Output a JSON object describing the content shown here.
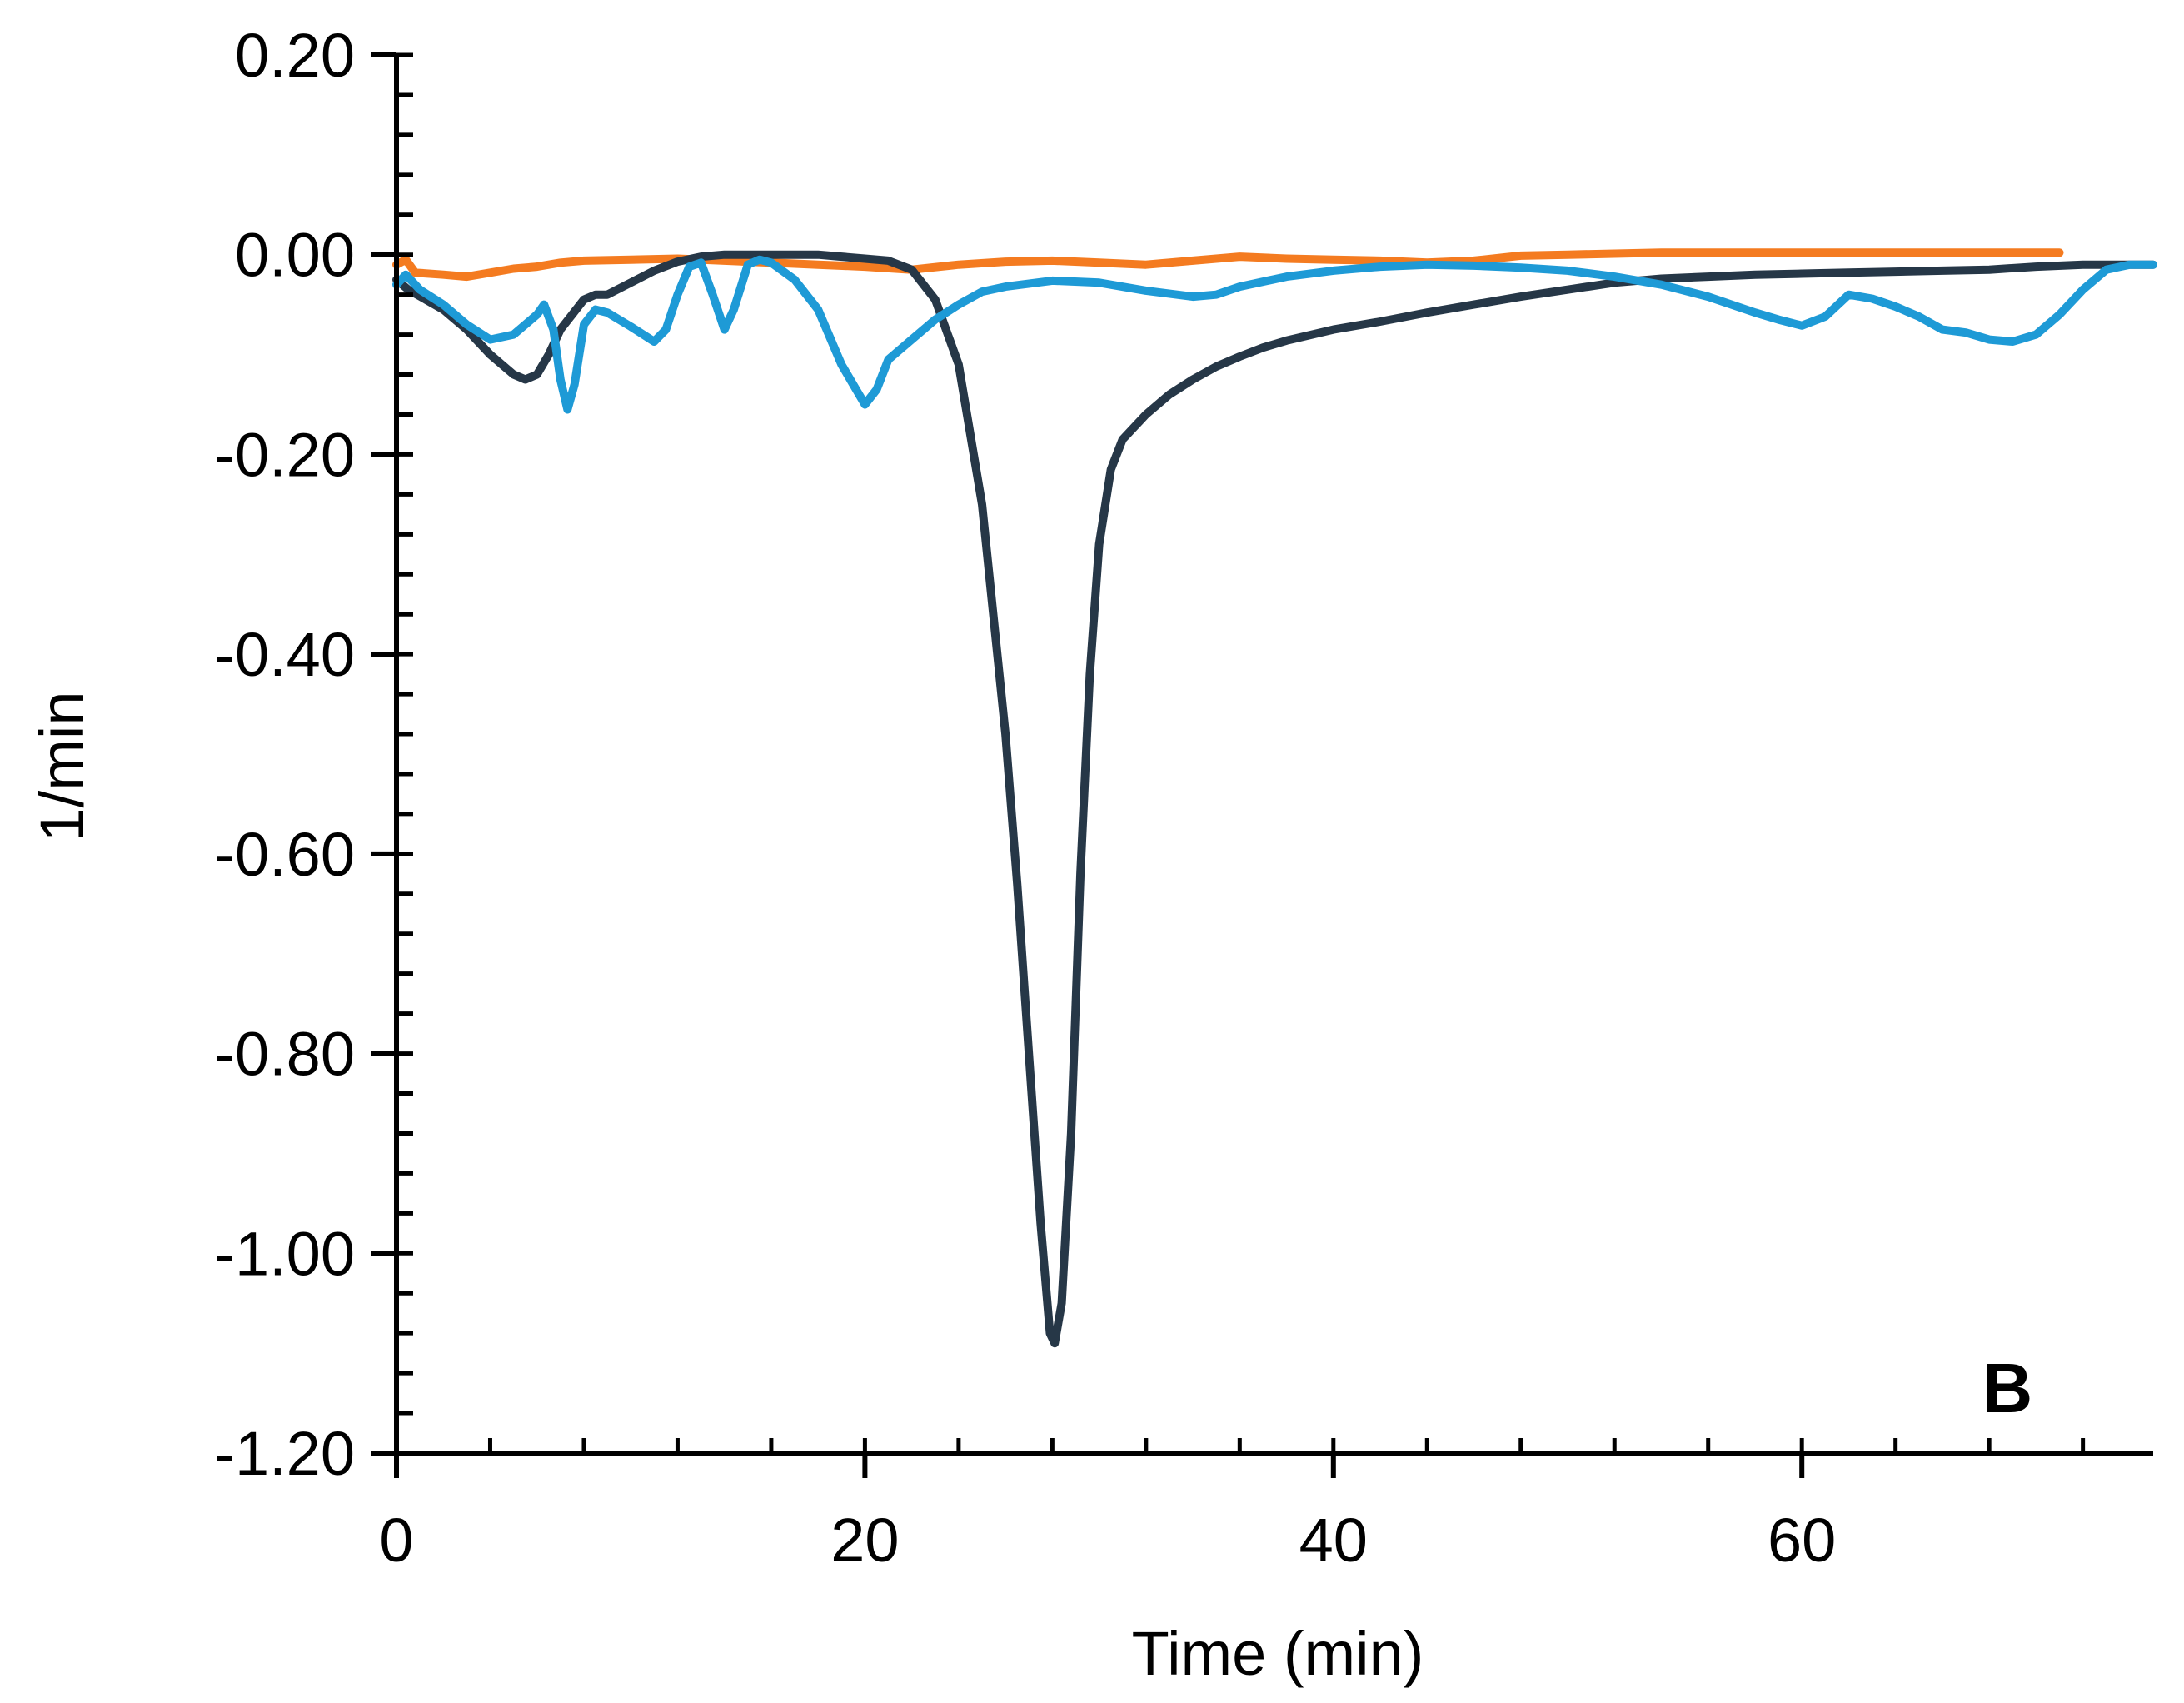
{
  "chart_data": {
    "type": "line",
    "title": "",
    "panel_label": "B",
    "xlabel": "Time (min)",
    "ylabel": "1/min",
    "xlim": [
      0,
      75
    ],
    "ylim": [
      -1.2,
      0.2
    ],
    "x_ticks": [
      0,
      20,
      40,
      60
    ],
    "x_tick_labels": [
      "0",
      "20",
      "40",
      "60"
    ],
    "x_minor_step": 4,
    "y_ticks": [
      0.2,
      0.0,
      -0.2,
      -0.4,
      -0.6,
      -0.8,
      -1.0,
      -1.2
    ],
    "y_tick_labels": [
      "0.20",
      "0.00",
      "-0.20",
      "-0.40",
      "-0.60",
      "-0.80",
      "-1.00",
      "-1.20"
    ],
    "y_minor_step": 0.04,
    "grid": false,
    "legend": "none",
    "series": [
      {
        "color": "#f47b20",
        "points": [
          [
            0,
            -0.01
          ],
          [
            0.4,
            -0.005
          ],
          [
            0.8,
            -0.018
          ],
          [
            2,
            -0.02
          ],
          [
            3,
            -0.022
          ],
          [
            4,
            -0.018
          ],
          [
            5,
            -0.014
          ],
          [
            6,
            -0.012
          ],
          [
            7,
            -0.008
          ],
          [
            8,
            -0.006
          ],
          [
            10,
            -0.005
          ],
          [
            12,
            -0.004
          ],
          [
            14,
            -0.006
          ],
          [
            16,
            -0.008
          ],
          [
            18,
            -0.01
          ],
          [
            20,
            -0.012
          ],
          [
            22,
            -0.015
          ],
          [
            24,
            -0.01
          ],
          [
            26,
            -0.007
          ],
          [
            28,
            -0.006
          ],
          [
            30,
            -0.008
          ],
          [
            32,
            -0.01
          ],
          [
            34,
            -0.006
          ],
          [
            36,
            -0.002
          ],
          [
            38,
            -0.004
          ],
          [
            40,
            -0.005
          ],
          [
            42,
            -0.006
          ],
          [
            44,
            -0.008
          ],
          [
            46,
            -0.006
          ],
          [
            48,
            -0.001
          ],
          [
            50,
            0.0
          ],
          [
            52,
            0.001
          ],
          [
            54,
            0.002
          ],
          [
            56,
            0.002
          ],
          [
            58,
            0.002
          ],
          [
            60,
            0.002
          ],
          [
            62,
            0.002
          ],
          [
            64,
            0.002
          ],
          [
            66,
            0.002
          ],
          [
            68,
            0.002
          ],
          [
            70,
            0.002
          ],
          [
            71,
            0.002
          ]
        ]
      },
      {
        "color": "#263747",
        "points": [
          [
            0,
            -0.025
          ],
          [
            0.5,
            -0.035
          ],
          [
            2,
            -0.055
          ],
          [
            3,
            -0.075
          ],
          [
            4,
            -0.1
          ],
          [
            5,
            -0.12
          ],
          [
            5.5,
            -0.125
          ],
          [
            6,
            -0.12
          ],
          [
            6.5,
            -0.1
          ],
          [
            7,
            -0.075
          ],
          [
            8,
            -0.045
          ],
          [
            8.5,
            -0.04
          ],
          [
            9,
            -0.04
          ],
          [
            10,
            -0.028
          ],
          [
            11,
            -0.016
          ],
          [
            12,
            -0.007
          ],
          [
            13,
            -0.002
          ],
          [
            14,
            0.0
          ],
          [
            16,
            0.0
          ],
          [
            18,
            0.0
          ],
          [
            20,
            -0.004
          ],
          [
            21,
            -0.006
          ],
          [
            22,
            -0.015
          ],
          [
            23,
            -0.045
          ],
          [
            24,
            -0.11
          ],
          [
            25,
            -0.25
          ],
          [
            26,
            -0.48
          ],
          [
            26.5,
            -0.63
          ],
          [
            27,
            -0.8
          ],
          [
            27.5,
            -0.97
          ],
          [
            27.9,
            -1.08
          ],
          [
            28.1,
            -1.09
          ],
          [
            28.4,
            -1.05
          ],
          [
            28.8,
            -0.88
          ],
          [
            29.2,
            -0.62
          ],
          [
            29.6,
            -0.42
          ],
          [
            30,
            -0.29
          ],
          [
            30.5,
            -0.215
          ],
          [
            31,
            -0.185
          ],
          [
            32,
            -0.16
          ],
          [
            33,
            -0.14
          ],
          [
            34,
            -0.125
          ],
          [
            35,
            -0.112
          ],
          [
            36,
            -0.102
          ],
          [
            37,
            -0.093
          ],
          [
            38,
            -0.086
          ],
          [
            40,
            -0.075
          ],
          [
            42,
            -0.067
          ],
          [
            44,
            -0.058
          ],
          [
            46,
            -0.05
          ],
          [
            48,
            -0.042
          ],
          [
            50,
            -0.035
          ],
          [
            52,
            -0.028
          ],
          [
            54,
            -0.024
          ],
          [
            56,
            -0.022
          ],
          [
            58,
            -0.02
          ],
          [
            60,
            -0.019
          ],
          [
            62,
            -0.018
          ],
          [
            64,
            -0.017
          ],
          [
            66,
            -0.016
          ],
          [
            68,
            -0.015
          ],
          [
            70,
            -0.012
          ],
          [
            72,
            -0.01
          ],
          [
            74,
            -0.01
          ],
          [
            75,
            -0.01
          ]
        ]
      },
      {
        "color": "#1e9ad6",
        "points": [
          [
            0,
            -0.03
          ],
          [
            0.4,
            -0.02
          ],
          [
            1,
            -0.035
          ],
          [
            2,
            -0.05
          ],
          [
            3,
            -0.07
          ],
          [
            4,
            -0.085
          ],
          [
            5,
            -0.08
          ],
          [
            6,
            -0.06
          ],
          [
            6.3,
            -0.05
          ],
          [
            6.7,
            -0.075
          ],
          [
            7,
            -0.125
          ],
          [
            7.3,
            -0.155
          ],
          [
            7.6,
            -0.13
          ],
          [
            8,
            -0.07
          ],
          [
            8.5,
            -0.055
          ],
          [
            9,
            -0.058
          ],
          [
            10,
            -0.072
          ],
          [
            11,
            -0.087
          ],
          [
            11.5,
            -0.075
          ],
          [
            12,
            -0.04
          ],
          [
            12.5,
            -0.012
          ],
          [
            13,
            -0.008
          ],
          [
            13.5,
            -0.04
          ],
          [
            14,
            -0.075
          ],
          [
            14.4,
            -0.055
          ],
          [
            15,
            -0.01
          ],
          [
            15.5,
            -0.005
          ],
          [
            16,
            -0.008
          ],
          [
            17,
            -0.025
          ],
          [
            18,
            -0.055
          ],
          [
            19,
            -0.11
          ],
          [
            20,
            -0.15
          ],
          [
            20.5,
            -0.135
          ],
          [
            21,
            -0.105
          ],
          [
            22,
            -0.085
          ],
          [
            23,
            -0.065
          ],
          [
            24,
            -0.05
          ],
          [
            25,
            -0.037
          ],
          [
            26,
            -0.032
          ],
          [
            28,
            -0.026
          ],
          [
            30,
            -0.028
          ],
          [
            32,
            -0.036
          ],
          [
            34,
            -0.042
          ],
          [
            35,
            -0.04
          ],
          [
            36,
            -0.032
          ],
          [
            38,
            -0.022
          ],
          [
            40,
            -0.016
          ],
          [
            42,
            -0.012
          ],
          [
            44,
            -0.01
          ],
          [
            46,
            -0.011
          ],
          [
            48,
            -0.013
          ],
          [
            50,
            -0.016
          ],
          [
            52,
            -0.022
          ],
          [
            54,
            -0.03
          ],
          [
            56,
            -0.042
          ],
          [
            58,
            -0.058
          ],
          [
            59,
            -0.065
          ],
          [
            60,
            -0.071
          ],
          [
            61,
            -0.062
          ],
          [
            62,
            -0.04
          ],
          [
            63,
            -0.044
          ],
          [
            64,
            -0.052
          ],
          [
            65,
            -0.062
          ],
          [
            66,
            -0.075
          ],
          [
            67,
            -0.078
          ],
          [
            68,
            -0.085
          ],
          [
            69,
            -0.087
          ],
          [
            70,
            -0.08
          ],
          [
            71,
            -0.06
          ],
          [
            72,
            -0.035
          ],
          [
            73,
            -0.015
          ],
          [
            74,
            -0.01
          ],
          [
            75,
            -0.01
          ]
        ]
      }
    ]
  }
}
